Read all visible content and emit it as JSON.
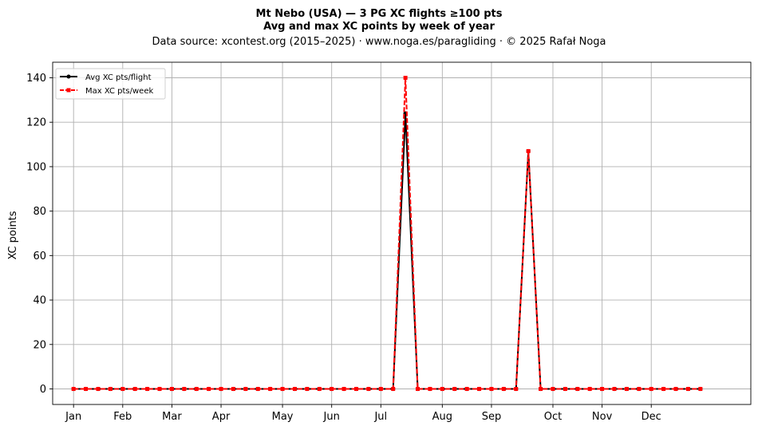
{
  "chart_data": {
    "type": "line",
    "title": "Mt Nebo (USA)  —  3 PG XC flights ≥100 pts",
    "subtitle": "Avg and max XC points by week of year",
    "source_note": "Data source: xcontest.org (2015–2025)  ·  www.noga.es/paragliding  ·  © 2025 Rafał Noga",
    "xlabel": "",
    "ylabel": "XC points",
    "xlim": [
      -1.7,
      55.1
    ],
    "ylim": [
      -7,
      147
    ],
    "x_ticks": [
      {
        "week": 0,
        "label": "Jan"
      },
      {
        "week": 4,
        "label": "Feb"
      },
      {
        "week": 8,
        "label": "Mar"
      },
      {
        "week": 12,
        "label": "Apr"
      },
      {
        "week": 17,
        "label": "May"
      },
      {
        "week": 21,
        "label": "Jun"
      },
      {
        "week": 25,
        "label": "Jul"
      },
      {
        "week": 30,
        "label": "Aug"
      },
      {
        "week": 34,
        "label": "Sep"
      },
      {
        "week": 39,
        "label": "Oct"
      },
      {
        "week": 43,
        "label": "Nov"
      },
      {
        "week": 47,
        "label": "Dec"
      }
    ],
    "y_ticks": [
      0,
      20,
      40,
      60,
      80,
      100,
      120,
      140
    ],
    "grid": true,
    "legend_position": "top-left",
    "x": [
      0,
      1,
      2,
      3,
      4,
      5,
      6,
      7,
      8,
      9,
      10,
      11,
      12,
      13,
      14,
      15,
      16,
      17,
      18,
      19,
      20,
      21,
      22,
      23,
      24,
      25,
      26,
      27,
      28,
      29,
      30,
      31,
      32,
      33,
      34,
      35,
      36,
      37,
      38,
      39,
      40,
      41,
      42,
      43,
      44,
      45,
      46,
      47,
      48,
      49,
      50,
      51
    ],
    "series": [
      {
        "name": "Avg XC pts/flight",
        "color": "#000000",
        "style": "solid",
        "marker": "circle",
        "values": [
          0,
          0,
          0,
          0,
          0,
          0,
          0,
          0,
          0,
          0,
          0,
          0,
          0,
          0,
          0,
          0,
          0,
          0,
          0,
          0,
          0,
          0,
          0,
          0,
          0,
          0,
          0,
          124,
          0,
          0,
          0,
          0,
          0,
          0,
          0,
          0,
          0,
          107,
          0,
          0,
          0,
          0,
          0,
          0,
          0,
          0,
          0,
          0,
          0,
          0,
          0,
          0
        ]
      },
      {
        "name": "Max XC pts/week",
        "color": "#ff0000",
        "style": "dashed",
        "marker": "square",
        "values": [
          0,
          0,
          0,
          0,
          0,
          0,
          0,
          0,
          0,
          0,
          0,
          0,
          0,
          0,
          0,
          0,
          0,
          0,
          0,
          0,
          0,
          0,
          0,
          0,
          0,
          0,
          0,
          140,
          0,
          0,
          0,
          0,
          0,
          0,
          0,
          0,
          0,
          107,
          0,
          0,
          0,
          0,
          0,
          0,
          0,
          0,
          0,
          0,
          0,
          0,
          0,
          0
        ]
      }
    ]
  }
}
